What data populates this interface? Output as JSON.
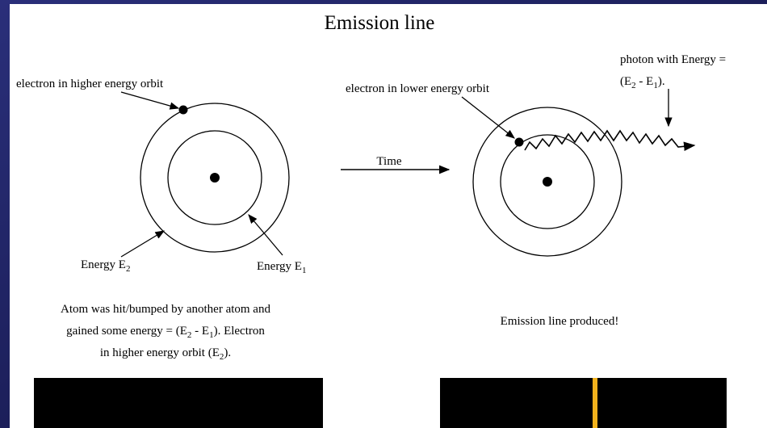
{
  "title": "Emission line",
  "left": {
    "electron_label": "electron in higher energy orbit",
    "energy_outer": [
      "Energy E",
      "2"
    ],
    "energy_inner": [
      "Energy E",
      "1"
    ],
    "caption": [
      [
        "Atom was hit/bumped by another atom and"
      ],
      [
        "gained some energy = (E",
        "2",
        " - E",
        "1",
        "). Electron"
      ],
      [
        "in higher energy orbit (E",
        "2",
        ")."
      ]
    ]
  },
  "arrow_label": "Time",
  "right": {
    "electron_label": "electron in lower energy orbit",
    "photon_label": [
      [
        "photon with Energy ="
      ],
      [
        "(E",
        "2",
        " - E",
        "1",
        ")."
      ]
    ],
    "caption": "Emission line produced!"
  }
}
